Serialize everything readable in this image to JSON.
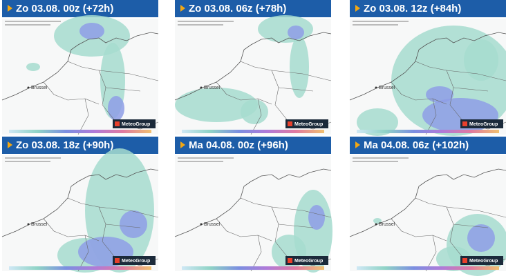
{
  "panels": [
    {
      "title": "Zo 03.08. 00z (+72h)",
      "city": "Brussel",
      "logo": "MeteoGroup"
    },
    {
      "title": "Zo 03.08. 06z (+78h)",
      "city": "Brussel",
      "logo": "MeteoGroup"
    },
    {
      "title": "Zo 03.08. 12z (+84h)",
      "city": "Brussel",
      "logo": "MeteoGroup"
    },
    {
      "title": "Zo 03.08. 18z (+90h)",
      "city": "Brussel",
      "logo": "MeteoGroup"
    },
    {
      "title": "Ma 04.08. 00z (+96h)",
      "city": "Brussel",
      "logo": "MeteoGroup"
    },
    {
      "title": "Ma 04.08. 06z (+102h)",
      "city": "Brussel",
      "logo": "MeteoGroup"
    }
  ]
}
